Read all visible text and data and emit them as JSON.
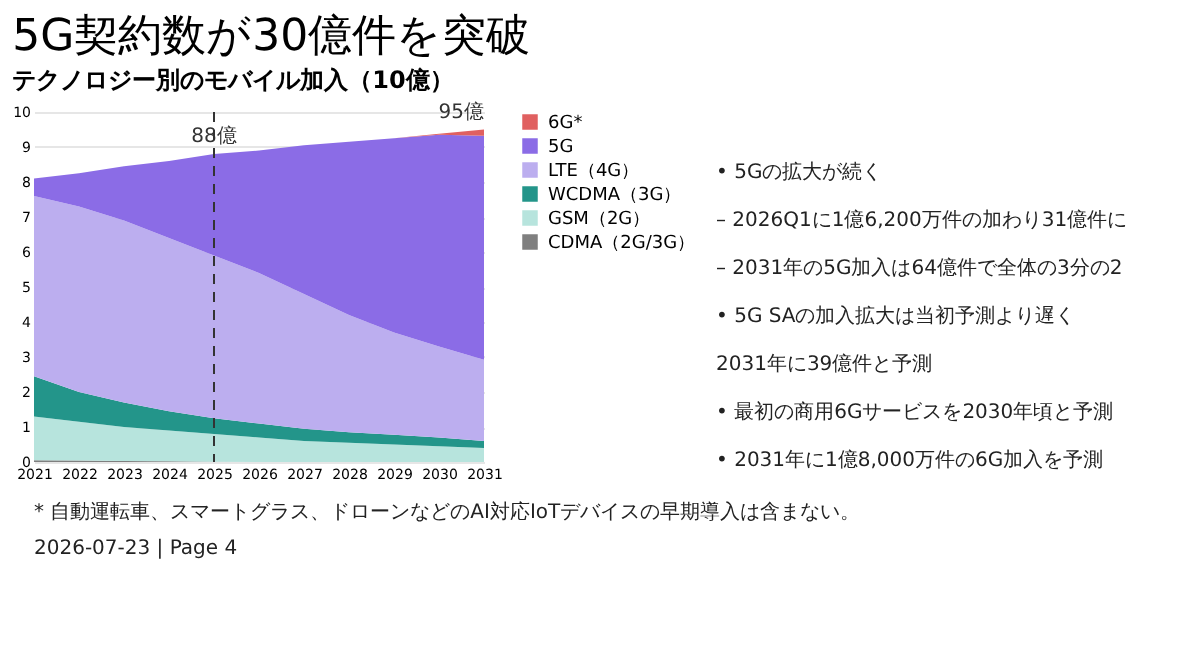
{
  "chart_data": {
    "type": "area",
    "stacked": true,
    "title": "5G契約数が30億件を突破",
    "subtitle": "テクノロジー別のモバイル加入（10億）",
    "x": [
      2021,
      2022,
      2023,
      2024,
      2025,
      2026,
      2027,
      2028,
      2029,
      2030,
      2031
    ],
    "series": [
      {
        "name": "CDMA（2G/3G）",
        "color": "#7f7f7f",
        "values": [
          0.05,
          0.04,
          0.03,
          0.02,
          0.01,
          0,
          0,
          0,
          0,
          0,
          0
        ]
      },
      {
        "name": "GSM（2G）",
        "color": "#b7e4dd",
        "values": [
          1.25,
          1.11,
          0.97,
          0.88,
          0.79,
          0.7,
          0.6,
          0.55,
          0.5,
          0.45,
          0.4
        ]
      },
      {
        "name": "WCDMA（3G）",
        "color": "#23958a",
        "values": [
          1.15,
          0.85,
          0.7,
          0.55,
          0.45,
          0.4,
          0.35,
          0.3,
          0.28,
          0.25,
          0.2
        ]
      },
      {
        "name": "LTE（4G）",
        "color": "#bcaeef",
        "values": [
          5.15,
          5.3,
          5.2,
          4.95,
          4.65,
          4.3,
          3.85,
          3.35,
          2.92,
          2.6,
          2.32
        ]
      },
      {
        "name": "5G",
        "color": "#8b6ce6",
        "values": [
          0.5,
          0.95,
          1.55,
          2.2,
          2.9,
          3.5,
          4.25,
          4.95,
          5.55,
          6.05,
          6.4
        ]
      },
      {
        "name": "6G*",
        "color": "#e06060",
        "values": [
          0,
          0,
          0,
          0,
          0,
          0,
          0,
          0,
          0,
          0.03,
          0.18
        ]
      }
    ],
    "xlim": [
      2021,
      2031
    ],
    "xticks": [
      2021,
      2022,
      2023,
      2024,
      2025,
      2026,
      2027,
      2028,
      2029,
      2030,
      2031
    ],
    "ylim": [
      0,
      10
    ],
    "yticks": [
      0,
      1,
      2,
      3,
      4,
      5,
      6,
      7,
      8,
      9,
      10
    ],
    "grid": "y",
    "legend": "right",
    "ref_lines": [
      {
        "axis": "x",
        "value": 2025,
        "color": "#333333",
        "line_style": "dashed"
      }
    ],
    "annotations": [
      {
        "text": "88億",
        "x": 2025,
        "y": 8.8
      },
      {
        "text": "95億",
        "x": 2031,
        "y": 9.5
      },
      "• 5Gの拡大が続く",
      "– 2026Q1に1億6,200万件の加わり31億件に",
      "– 2031年の5G加入は64億件で全体の3分の2",
      "• 5G SAの加入拡大は当初予測より遅く",
      "2031年に39億件と予測",
      "• 最初の商用6Gサービスを2030年頃と予測",
      "• 2031年に1億8,000万件の6G加入を予測",
      "* 自動運転車、スマートグラス、ドローンなどのAI対応IoTデバイスの早期導入は含まない。",
      "2026-07-23 | Page 4"
    ]
  }
}
